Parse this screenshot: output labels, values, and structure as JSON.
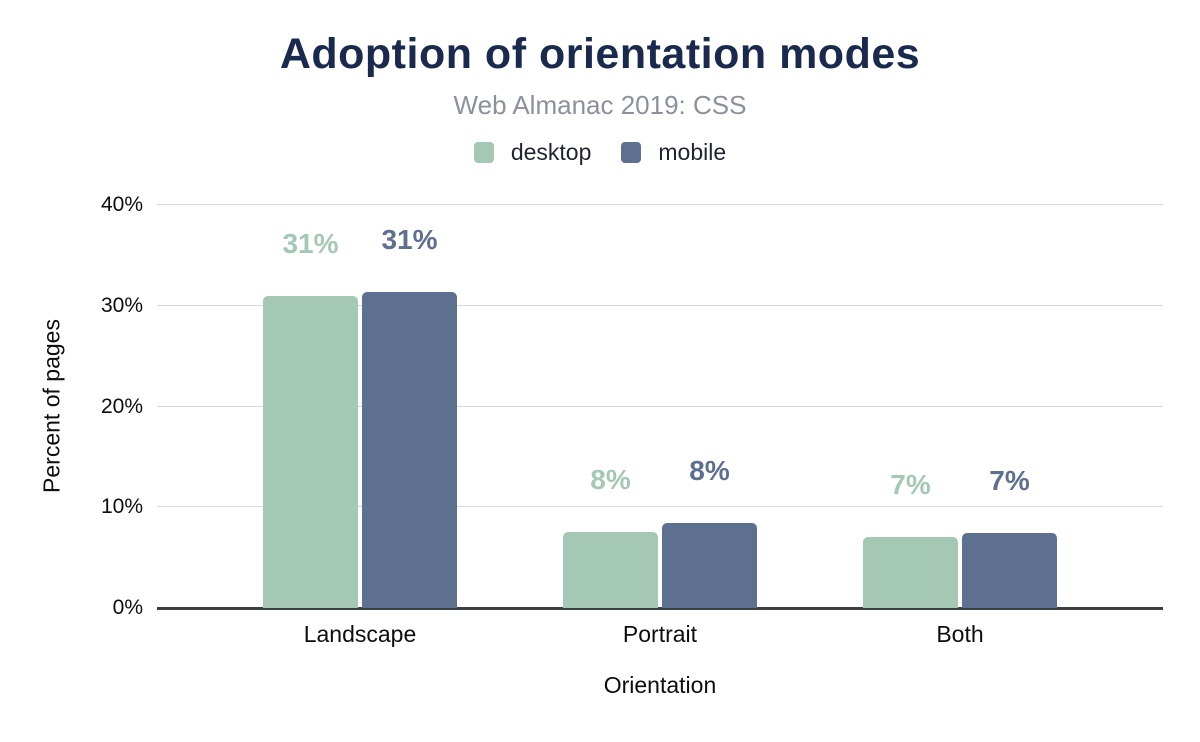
{
  "chart_data": {
    "type": "bar",
    "title": "Adoption of orientation modes",
    "subtitle": "Web Almanac 2019: CSS",
    "categories": [
      "Landscape",
      "Portrait",
      "Both"
    ],
    "series": [
      {
        "name": "desktop",
        "color": "#a5c8b5",
        "values": [
          31.0,
          7.5,
          7.0
        ],
        "display_labels": [
          "31%",
          "8%",
          "7%"
        ]
      },
      {
        "name": "mobile",
        "color": "#5e7090",
        "values": [
          31.4,
          8.4,
          7.4
        ],
        "display_labels": [
          "31%",
          "8%",
          "7%"
        ]
      }
    ],
    "xlabel": "Orientation",
    "ylabel": "Percent of pages",
    "ylim": [
      0,
      40
    ],
    "ytick_labels": [
      "0%",
      "10%",
      "20%",
      "30%",
      "40%"
    ],
    "grid": "horizontal",
    "legend_position": "top-center",
    "colors": {
      "title": "#1a2a4f",
      "subtitle": "#8b919c",
      "gridline": "#d9d9d9",
      "axis_line": "#3c4043",
      "text": "#0d0d0d"
    }
  }
}
